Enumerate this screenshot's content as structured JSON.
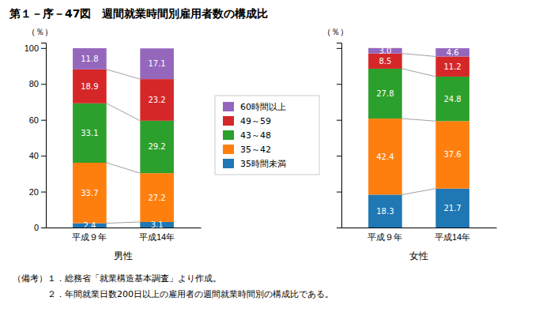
{
  "chart_data": [
    {
      "type": "bar",
      "stacked": true,
      "data_labels": true,
      "title": "第１－序－47図　週間就業時間別雇用者数の構成比",
      "annotations": [
        "（備考）１．総務省「就業構造基本調査」より作成。",
        "　　　　２．年間就業日数200日以上の雇用者の週間就業時間別の構成比である。"
      ],
      "legend": "right",
      "categories": [
        "平成９年",
        "平成14年"
      ],
      "xlabel": "男性",
      "ylabel": "（％）",
      "ylim": [
        0,
        103
      ],
      "yticks": [
        0,
        20,
        40,
        60,
        80,
        100
      ],
      "series": [
        {
          "name": "35時間未満",
          "values": [
            2.4,
            3.1
          ]
        },
        {
          "name": "35～42",
          "values": [
            33.7,
            27.2
          ]
        },
        {
          "name": "43～48",
          "values": [
            33.1,
            29.2
          ]
        },
        {
          "name": "49～59",
          "values": [
            18.9,
            23.2
          ]
        },
        {
          "name": "60時間以上",
          "values": [
            11.8,
            17.1
          ]
        }
      ]
    },
    {
      "type": "bar",
      "stacked": true,
      "data_labels": true,
      "tick_labels": "x",
      "categories": [
        "平成９年",
        "平成14年"
      ],
      "xlabel": "女性",
      "ylabel": "（％）",
      "ylim": [
        0,
        103
      ],
      "yticks": [
        0,
        20,
        40,
        60,
        80,
        100
      ],
      "series": [
        {
          "name": "35時間未満",
          "values": [
            18.3,
            21.7
          ]
        },
        {
          "name": "35～42",
          "values": [
            42.4,
            37.6
          ]
        },
        {
          "name": "43～48",
          "values": [
            27.8,
            24.8
          ]
        },
        {
          "name": "49～59",
          "values": [
            8.5,
            11.2
          ]
        },
        {
          "name": "60時間以上",
          "values": [
            3.0,
            4.6
          ],
          "value_labels": [
            "3.0",
            "4.6"
          ]
        }
      ]
    }
  ]
}
